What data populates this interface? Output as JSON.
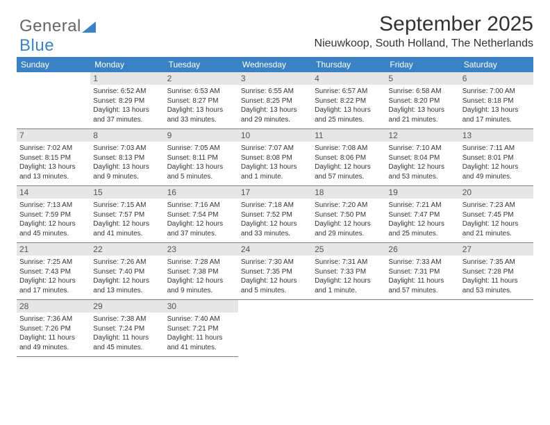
{
  "logo": {
    "text_a": "General",
    "text_b": "Blue"
  },
  "header": {
    "title": "September 2025",
    "subtitle": "Nieuwkoop, South Holland, The Netherlands"
  },
  "dow": [
    "Sunday",
    "Monday",
    "Tuesday",
    "Wednesday",
    "Thursday",
    "Friday",
    "Saturday"
  ],
  "weeks": [
    [
      null,
      {
        "n": "1",
        "sr": "6:52 AM",
        "ss": "8:29 PM",
        "dl": "13 hours and 37 minutes."
      },
      {
        "n": "2",
        "sr": "6:53 AM",
        "ss": "8:27 PM",
        "dl": "13 hours and 33 minutes."
      },
      {
        "n": "3",
        "sr": "6:55 AM",
        "ss": "8:25 PM",
        "dl": "13 hours and 29 minutes."
      },
      {
        "n": "4",
        "sr": "6:57 AM",
        "ss": "8:22 PM",
        "dl": "13 hours and 25 minutes."
      },
      {
        "n": "5",
        "sr": "6:58 AM",
        "ss": "8:20 PM",
        "dl": "13 hours and 21 minutes."
      },
      {
        "n": "6",
        "sr": "7:00 AM",
        "ss": "8:18 PM",
        "dl": "13 hours and 17 minutes."
      }
    ],
    [
      {
        "n": "7",
        "sr": "7:02 AM",
        "ss": "8:15 PM",
        "dl": "13 hours and 13 minutes."
      },
      {
        "n": "8",
        "sr": "7:03 AM",
        "ss": "8:13 PM",
        "dl": "13 hours and 9 minutes."
      },
      {
        "n": "9",
        "sr": "7:05 AM",
        "ss": "8:11 PM",
        "dl": "13 hours and 5 minutes."
      },
      {
        "n": "10",
        "sr": "7:07 AM",
        "ss": "8:08 PM",
        "dl": "13 hours and 1 minute."
      },
      {
        "n": "11",
        "sr": "7:08 AM",
        "ss": "8:06 PM",
        "dl": "12 hours and 57 minutes."
      },
      {
        "n": "12",
        "sr": "7:10 AM",
        "ss": "8:04 PM",
        "dl": "12 hours and 53 minutes."
      },
      {
        "n": "13",
        "sr": "7:11 AM",
        "ss": "8:01 PM",
        "dl": "12 hours and 49 minutes."
      }
    ],
    [
      {
        "n": "14",
        "sr": "7:13 AM",
        "ss": "7:59 PM",
        "dl": "12 hours and 45 minutes."
      },
      {
        "n": "15",
        "sr": "7:15 AM",
        "ss": "7:57 PM",
        "dl": "12 hours and 41 minutes."
      },
      {
        "n": "16",
        "sr": "7:16 AM",
        "ss": "7:54 PM",
        "dl": "12 hours and 37 minutes."
      },
      {
        "n": "17",
        "sr": "7:18 AM",
        "ss": "7:52 PM",
        "dl": "12 hours and 33 minutes."
      },
      {
        "n": "18",
        "sr": "7:20 AM",
        "ss": "7:50 PM",
        "dl": "12 hours and 29 minutes."
      },
      {
        "n": "19",
        "sr": "7:21 AM",
        "ss": "7:47 PM",
        "dl": "12 hours and 25 minutes."
      },
      {
        "n": "20",
        "sr": "7:23 AM",
        "ss": "7:45 PM",
        "dl": "12 hours and 21 minutes."
      }
    ],
    [
      {
        "n": "21",
        "sr": "7:25 AM",
        "ss": "7:43 PM",
        "dl": "12 hours and 17 minutes."
      },
      {
        "n": "22",
        "sr": "7:26 AM",
        "ss": "7:40 PM",
        "dl": "12 hours and 13 minutes."
      },
      {
        "n": "23",
        "sr": "7:28 AM",
        "ss": "7:38 PM",
        "dl": "12 hours and 9 minutes."
      },
      {
        "n": "24",
        "sr": "7:30 AM",
        "ss": "7:35 PM",
        "dl": "12 hours and 5 minutes."
      },
      {
        "n": "25",
        "sr": "7:31 AM",
        "ss": "7:33 PM",
        "dl": "12 hours and 1 minute."
      },
      {
        "n": "26",
        "sr": "7:33 AM",
        "ss": "7:31 PM",
        "dl": "11 hours and 57 minutes."
      },
      {
        "n": "27",
        "sr": "7:35 AM",
        "ss": "7:28 PM",
        "dl": "11 hours and 53 minutes."
      }
    ],
    [
      {
        "n": "28",
        "sr": "7:36 AM",
        "ss": "7:26 PM",
        "dl": "11 hours and 49 minutes."
      },
      {
        "n": "29",
        "sr": "7:38 AM",
        "ss": "7:24 PM",
        "dl": "11 hours and 45 minutes."
      },
      {
        "n": "30",
        "sr": "7:40 AM",
        "ss": "7:21 PM",
        "dl": "11 hours and 41 minutes."
      },
      null,
      null,
      null,
      null
    ]
  ],
  "labels": {
    "sunrise": "Sunrise:",
    "sunset": "Sunset:",
    "daylight": "Daylight:"
  },
  "style": {
    "header_bg": "#3b82c4",
    "header_fg": "#ffffff",
    "daynum_bg": "#e6e6e6",
    "border_color": "#808080",
    "body_font_size": 10,
    "title_font_size": 30,
    "subtitle_font_size": 16
  }
}
